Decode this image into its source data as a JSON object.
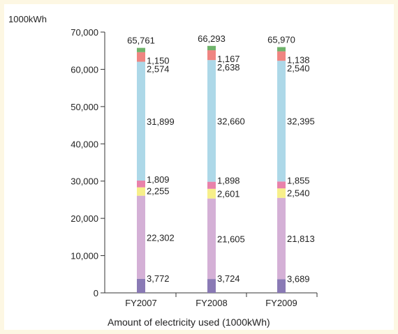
{
  "chart_data": {
    "type": "bar",
    "stacked": true,
    "unit_label": "1000kWh",
    "xlabel": "Amount of electricity used (1000kWh)",
    "categories": [
      "FY2007",
      "FY2008",
      "FY2009"
    ],
    "ylim": [
      0,
      70000
    ],
    "yticks": [
      "0",
      "10,000",
      "20,000",
      "30,000",
      "40,000",
      "50,000",
      "60,000",
      "70,000"
    ],
    "ytick_values": [
      0,
      10000,
      20000,
      30000,
      40000,
      50000,
      60000,
      70000
    ],
    "totals": [
      65761,
      66293,
      65970
    ],
    "total_labels": [
      "65,761",
      "66,293",
      "65,970"
    ],
    "series": [
      {
        "values": [
          3772,
          3724,
          3689
        ],
        "labels": [
          "3,772",
          "3,724",
          "3,689"
        ],
        "color": "#8a7ab5"
      },
      {
        "values": [
          22302,
          21605,
          21813
        ],
        "labels": [
          "22,302",
          "21,605",
          "21,813"
        ],
        "color": "#d4b0d6"
      },
      {
        "values": [
          2255,
          2601,
          2540
        ],
        "labels": [
          "2,255",
          "2,601",
          "2,540"
        ],
        "color": "#f7ef8a"
      },
      {
        "values": [
          1809,
          1898,
          1855
        ],
        "labels": [
          "1,809",
          "1,898",
          "1,855"
        ],
        "color": "#e882ab"
      },
      {
        "values": [
          31899,
          32660,
          32395
        ],
        "labels": [
          "31,899",
          "32,660",
          "32,395"
        ],
        "color": "#add8e8"
      },
      {
        "values": [
          2574,
          2638,
          2540
        ],
        "labels": [
          "2,574",
          "2,638",
          "2,540"
        ],
        "color": "#ef8582"
      },
      {
        "values": [
          1150,
          1167,
          1138
        ],
        "labels": [
          "1,150",
          "1,167",
          "1,138"
        ],
        "color": "#6fb36b"
      }
    ]
  }
}
